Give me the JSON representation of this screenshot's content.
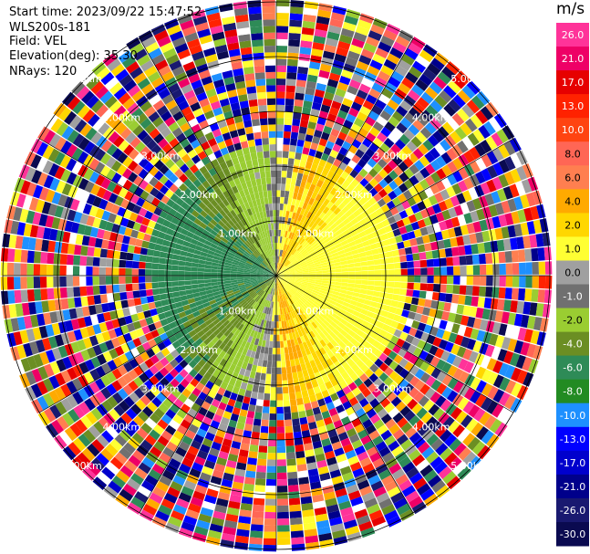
{
  "info": {
    "start_time": "Start time: 2023/09/22 15:47:52",
    "instrument": "WLS200s-181",
    "field": "Field: VEL",
    "elevation": "Elevation(deg): 35.30",
    "nrays": "NRays: 120"
  },
  "chart_data": {
    "type": "heatmap",
    "projection": "polar-ppi",
    "field": "VEL",
    "units": "m/s",
    "n_rays": 120,
    "elevation_deg": 35.3,
    "range_rings_km": [
      1.0,
      2.0,
      3.0,
      4.0,
      5.0
    ],
    "ring_labels": [
      "1.00km",
      "2.00km",
      "3.00km",
      "4.00km",
      "5.00km"
    ],
    "max_range_km": 5.0,
    "clean_range_km": 2.5,
    "azimuth_lines_deg": [
      0,
      30,
      60,
      90,
      120,
      150,
      180,
      210,
      240,
      270,
      300,
      330
    ],
    "colorbar": {
      "ticks": [
        "26.0",
        "21.0",
        "17.0",
        "13.0",
        "10.0",
        "8.0",
        "6.0",
        "4.0",
        "2.0",
        "1.0",
        "0.0",
        "-1.0",
        "-2.0",
        "-4.0",
        "-6.0",
        "-8.0",
        "-10.0",
        "-13.0",
        "-17.0",
        "-21.0",
        "-26.0",
        "-30.0"
      ],
      "colors": [
        "#ff3399",
        "#ee0066",
        "#e60000",
        "#ff2200",
        "#ff4411",
        "#ff6655",
        "#ff7f50",
        "#ffaa00",
        "#ffd700",
        "#ffff33",
        "#a0a0a0",
        "#707070",
        "#9acd32",
        "#6b8e23",
        "#2e8b57",
        "#228b22",
        "#1e90ff",
        "#0000ff",
        "#0000cd",
        "#00008b",
        "#191970",
        "#0a0a50"
      ]
    }
  }
}
